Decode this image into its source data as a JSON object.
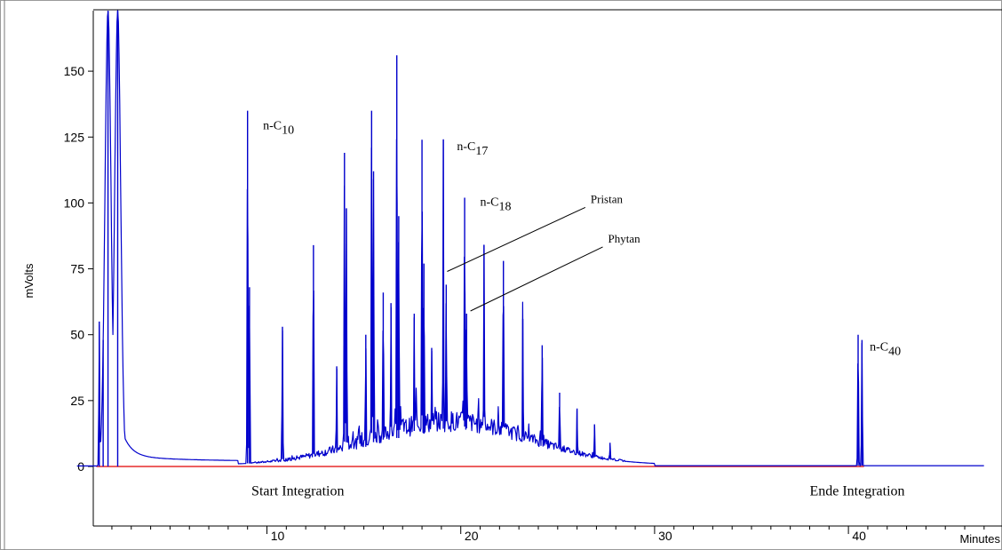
{
  "chart_data": {
    "type": "line",
    "title": "",
    "xlabel": "Minutes",
    "ylabel": "mVolts",
    "xlim": [
      0.2,
      47.0
    ],
    "ylim": [
      -17,
      173
    ],
    "x_ticks": [
      10,
      20,
      30,
      40
    ],
    "x_tick_labels": [
      "10",
      "20",
      "30",
      "40"
    ],
    "y_ticks": [
      0,
      25,
      50,
      75,
      100,
      125,
      150
    ],
    "y_tick_labels": [
      "0",
      "25",
      "50",
      "75",
      "100",
      "125",
      "150"
    ],
    "grid": false,
    "legend": "none",
    "series": [
      {
        "color": "#0000cc",
        "peaks": [
          {
            "x": 1.35,
            "y": 55
          },
          {
            "x": 1.55,
            "y": 48
          },
          {
            "x": 1.8,
            "y": 173
          },
          {
            "x": 2.3,
            "y": 173
          },
          {
            "x": 9.0,
            "y": 135
          },
          {
            "x": 9.1,
            "y": 68
          },
          {
            "x": 10.8,
            "y": 53
          },
          {
            "x": 12.4,
            "y": 84
          },
          {
            "x": 13.6,
            "y": 38
          },
          {
            "x": 14.0,
            "y": 119
          },
          {
            "x": 14.1,
            "y": 98
          },
          {
            "x": 15.1,
            "y": 50
          },
          {
            "x": 15.4,
            "y": 135
          },
          {
            "x": 15.5,
            "y": 112
          },
          {
            "x": 16.0,
            "y": 66
          },
          {
            "x": 16.4,
            "y": 62
          },
          {
            "x": 16.7,
            "y": 156
          },
          {
            "x": 16.8,
            "y": 95
          },
          {
            "x": 17.6,
            "y": 58
          },
          {
            "x": 18.0,
            "y": 124
          },
          {
            "x": 18.1,
            "y": 77
          },
          {
            "x": 18.5,
            "y": 45
          },
          {
            "x": 19.1,
            "y": 124
          },
          {
            "x": 19.25,
            "y": 69
          },
          {
            "x": 20.2,
            "y": 102
          },
          {
            "x": 20.3,
            "y": 58
          },
          {
            "x": 21.2,
            "y": 84
          },
          {
            "x": 22.2,
            "y": 78
          },
          {
            "x": 23.2,
            "y": 56
          },
          {
            "x": 24.2,
            "y": 46
          },
          {
            "x": 25.1,
            "y": 28
          },
          {
            "x": 26.0,
            "y": 22
          },
          {
            "x": 26.9,
            "y": 16
          },
          {
            "x": 27.7,
            "y": 9
          },
          {
            "x": 40.5,
            "y": 50
          },
          {
            "x": 40.7,
            "y": 48
          }
        ]
      },
      {
        "color": "#e00000",
        "x": [
          1.2,
          40.8
        ],
        "y": [
          0,
          0
        ]
      }
    ],
    "annotations": [
      {
        "id": "nc10",
        "base": "n-C",
        "sub": "10",
        "x": 9.8,
        "y": 128
      },
      {
        "id": "nc17",
        "base": "n-C",
        "sub": "17",
        "x": 19.8,
        "y": 120
      },
      {
        "id": "nc18",
        "base": "n-C",
        "sub": "18",
        "x": 21.0,
        "y": 99
      },
      {
        "id": "nc40",
        "base": "n-C",
        "sub": "40",
        "x": 41.1,
        "y": 44
      },
      {
        "id": "pristan",
        "text": "Pristan",
        "x": 26.7,
        "y": 100,
        "pointer_to": [
          19.3,
          74
        ]
      },
      {
        "id": "phytan",
        "text": "Phytan",
        "x": 27.6,
        "y": 85,
        "pointer_to": [
          20.5,
          59
        ]
      },
      {
        "id": "start",
        "text": "Start Integration",
        "x": 9.2,
        "y": -11
      },
      {
        "id": "ende",
        "text": "Ende Integration",
        "x": 38.0,
        "y": -11
      }
    ]
  }
}
